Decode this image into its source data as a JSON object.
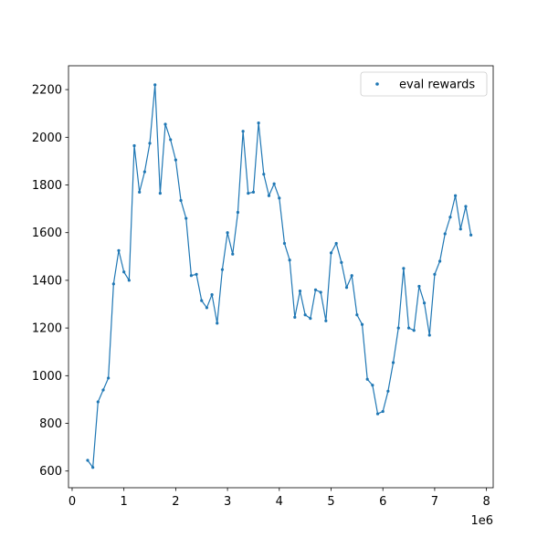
{
  "chart_data": {
    "type": "line",
    "title": "",
    "xlabel": "",
    "ylabel": "",
    "x_offset_text": "1e6",
    "xlim": [
      -0.07,
      8.13
    ],
    "ylim": [
      530,
      2300
    ],
    "xticks": [
      0,
      1,
      2,
      3,
      4,
      5,
      6,
      7,
      8
    ],
    "yticks": [
      600,
      800,
      1000,
      1200,
      1400,
      1600,
      1800,
      2000,
      2200
    ],
    "grid": false,
    "legend": {
      "placement": "upper-right"
    },
    "series_color": "#1f77b4",
    "series": [
      {
        "name": "eval rewards",
        "x": [
          0.3,
          0.4,
          0.5,
          0.6,
          0.7,
          0.8,
          0.9,
          1.0,
          1.1,
          1.2,
          1.3,
          1.4,
          1.5,
          1.6,
          1.7,
          1.8,
          1.9,
          2.0,
          2.1,
          2.2,
          2.3,
          2.4,
          2.5,
          2.6,
          2.7,
          2.8,
          2.9,
          3.0,
          3.1,
          3.2,
          3.3,
          3.4,
          3.5,
          3.6,
          3.7,
          3.8,
          3.9,
          4.0,
          4.1,
          4.2,
          4.3,
          4.4,
          4.5,
          4.6,
          4.7,
          4.8,
          4.9,
          5.0,
          5.1,
          5.2,
          5.3,
          5.4,
          5.5,
          5.6,
          5.7,
          5.8,
          5.9,
          6.0,
          6.1,
          6.2,
          6.3,
          6.4,
          6.5,
          6.6,
          6.7,
          6.8,
          6.9,
          7.0,
          7.1,
          7.2,
          7.3,
          7.4,
          7.5,
          7.6,
          7.7
        ],
        "values": [
          645,
          615,
          890,
          940,
          990,
          1385,
          1525,
          1435,
          1400,
          1965,
          1770,
          1855,
          1975,
          2220,
          1765,
          2055,
          1990,
          1905,
          1735,
          1660,
          1420,
          1425,
          1315,
          1285,
          1340,
          1220,
          1445,
          1600,
          1510,
          1685,
          2025,
          1765,
          1770,
          2060,
          1845,
          1755,
          1805,
          1745,
          1555,
          1485,
          1245,
          1355,
          1255,
          1240,
          1360,
          1350,
          1230,
          1515,
          1555,
          1475,
          1370,
          1420,
          1255,
          1215,
          985,
          960,
          840,
          850,
          935,
          1055,
          1200,
          1450,
          1200,
          1190,
          1375,
          1305,
          1170,
          1425,
          1480,
          1595,
          1665,
          1755,
          1615,
          1710,
          1590
        ]
      }
    ]
  }
}
